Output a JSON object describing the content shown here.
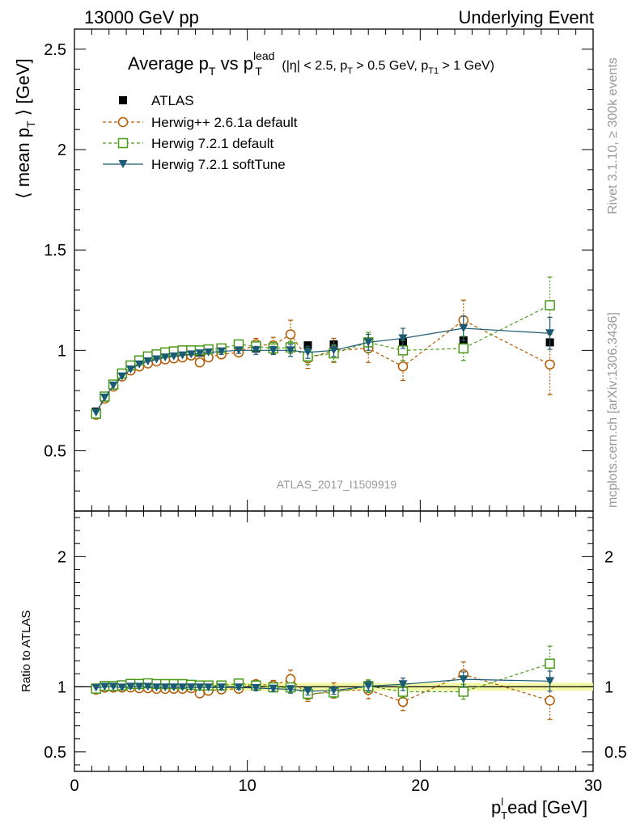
{
  "header": {
    "left": "13000 GeV pp",
    "right": "Underlying Event"
  },
  "side_labels": {
    "rivet": "Rivet 3.1.10, ≥ 300k events",
    "mcplots": "mcplots.cern.ch [arXiv:1306.3436]"
  },
  "chart_data": {
    "type": "scatter",
    "title": {
      "t1": "Average p",
      "t1_sub": "T",
      "t2": " vs p",
      "t2_sup": "lead",
      "t2_sub": "T",
      "t3": " (|η| < 2.5, p",
      "t3_sub": "T",
      "t4": " > 0.5 GeV, p",
      "t4_sub": "T1",
      "t5": " > 1 GeV)"
    },
    "analysis_label": "ATLAS_2017_I1509919",
    "ylabel": {
      "a": "⟨ mean p",
      "sub": "T",
      "b": " ⟩ [GeV]"
    },
    "ratio_ylabel": "Ratio to ATLAS",
    "xlabel": {
      "a": "p",
      "sup": "l",
      "sub": "T",
      "b": "ead [GeV]"
    },
    "xlim": [
      0,
      30
    ],
    "ylim": [
      0.2,
      2.6
    ],
    "ratio_ylim": [
      0.35,
      2.35
    ],
    "xticks": [
      "0",
      "10",
      "20",
      "30"
    ],
    "yticks": [
      "0.5",
      "1",
      "1.5",
      "2",
      "2.5"
    ],
    "ratio_yticks": [
      "0.5",
      "1",
      "2"
    ],
    "x": [
      1.25,
      1.75,
      2.25,
      2.75,
      3.25,
      3.75,
      4.25,
      4.75,
      5.25,
      5.75,
      6.25,
      6.75,
      7.25,
      7.75,
      8.5,
      9.5,
      10.5,
      11.5,
      12.5,
      13.5,
      15.0,
      17.0,
      19.0,
      22.5,
      27.5
    ],
    "series": [
      {
        "name": "ATLAS",
        "color": "#000000",
        "marker": "filled-square",
        "line": "none",
        "y": [
          0.695,
          0.765,
          0.825,
          0.875,
          0.905,
          0.93,
          0.945,
          0.96,
          0.97,
          0.975,
          0.98,
          0.985,
          0.99,
          0.995,
          1.0,
          1.005,
          1.01,
          1.015,
          1.02,
          1.025,
          1.03,
          1.035,
          1.04,
          1.05,
          1.04
        ]
      },
      {
        "name": "Herwig++ 2.6.1a default",
        "color": "#b35900",
        "marker": "open-circle",
        "line": "dashed",
        "y": [
          0.68,
          0.76,
          0.82,
          0.87,
          0.9,
          0.92,
          0.935,
          0.945,
          0.955,
          0.96,
          0.965,
          0.975,
          0.94,
          0.965,
          0.98,
          0.99,
          1.03,
          1.025,
          1.08,
          0.96,
          1.0,
          1.01,
          0.92,
          1.15,
          0.93
        ],
        "err": [
          0.01,
          0.01,
          0.01,
          0.01,
          0.01,
          0.01,
          0.01,
          0.01,
          0.01,
          0.01,
          0.01,
          0.01,
          0.015,
          0.015,
          0.02,
          0.02,
          0.03,
          0.04,
          0.07,
          0.05,
          0.06,
          0.07,
          0.07,
          0.1,
          0.15
        ]
      },
      {
        "name": "Herwig 7.2.1 default",
        "color": "#4a9a1a",
        "marker": "open-square",
        "line": "dashed",
        "y": [
          0.685,
          0.77,
          0.83,
          0.885,
          0.925,
          0.95,
          0.97,
          0.98,
          0.99,
          0.995,
          1.0,
          1.0,
          1.0,
          1.005,
          1.01,
          1.03,
          1.02,
          1.01,
          1.015,
          0.97,
          0.985,
          1.04,
          1.0,
          1.01,
          1.225
        ],
        "err": [
          0.01,
          0.01,
          0.01,
          0.01,
          0.01,
          0.01,
          0.01,
          0.01,
          0.01,
          0.01,
          0.01,
          0.01,
          0.015,
          0.015,
          0.02,
          0.02,
          0.02,
          0.03,
          0.03,
          0.04,
          0.04,
          0.05,
          0.05,
          0.06,
          0.14
        ]
      },
      {
        "name": "Herwig 7.2.1 softTune",
        "color": "#1a5a72",
        "marker": "filled-triangle-down",
        "line": "solid",
        "y": [
          0.69,
          0.765,
          0.825,
          0.87,
          0.905,
          0.93,
          0.945,
          0.955,
          0.965,
          0.97,
          0.975,
          0.98,
          0.985,
          0.99,
          0.995,
          1.0,
          1.0,
          1.0,
          1.0,
          0.99,
          1.0,
          1.04,
          1.06,
          1.11,
          1.085
        ],
        "err": [
          0.01,
          0.01,
          0.01,
          0.01,
          0.01,
          0.01,
          0.01,
          0.01,
          0.01,
          0.01,
          0.01,
          0.01,
          0.01,
          0.01,
          0.015,
          0.015,
          0.02,
          0.02,
          0.03,
          0.03,
          0.03,
          0.04,
          0.05,
          0.06,
          0.08
        ]
      }
    ]
  }
}
